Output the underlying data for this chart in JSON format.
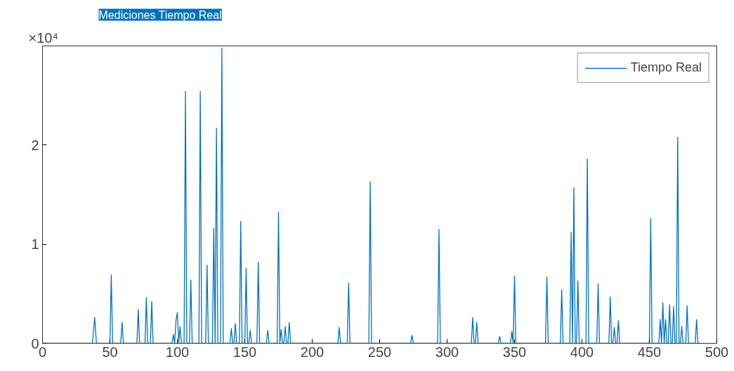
{
  "chart_data": {
    "type": "line",
    "title": "Mediciones Tiempo Real",
    "annotations": [
      "×10⁴"
    ],
    "x": [
      0,
      37,
      38.7,
      40,
      50,
      51,
      52,
      58,
      59,
      60,
      70,
      71,
      72,
      76,
      77,
      78,
      80,
      81,
      82,
      96,
      97,
      98,
      99,
      100,
      101,
      102,
      103,
      105,
      106,
      107,
      109,
      110,
      111,
      116,
      117,
      118,
      121,
      122,
      123,
      126,
      127,
      128,
      129,
      130,
      132,
      133,
      134,
      139,
      140,
      141,
      142,
      143,
      144,
      146,
      147,
      148,
      150,
      151,
      152,
      153,
      154,
      155,
      159,
      160,
      161,
      166,
      167,
      168,
      174,
      175,
      176,
      177,
      178,
      179,
      180,
      181,
      182,
      183,
      184,
      219,
      220,
      221,
      226,
      227,
      228,
      242,
      243,
      244,
      273,
      274,
      275,
      293,
      294,
      295,
      318,
      319,
      320,
      321,
      322,
      323,
      338,
      339,
      340,
      347,
      348,
      349,
      350,
      351,
      373,
      374,
      375,
      384,
      385,
      386,
      391,
      392,
      393,
      394,
      395,
      396,
      397,
      398,
      403,
      404,
      405,
      411,
      412,
      413,
      420,
      421,
      422,
      423,
      424,
      425,
      426,
      427,
      428,
      450,
      451,
      452,
      457,
      458,
      459,
      460,
      461,
      462,
      463,
      464,
      465,
      466,
      467,
      468,
      469,
      470,
      471,
      472,
      473,
      474,
      475,
      477,
      478,
      479,
      484,
      485,
      486,
      487
    ],
    "series": [
      {
        "name": "Tiempo Real",
        "color": "#0072bd",
        "values": [
          0,
          0,
          0.26,
          0,
          0,
          0.69,
          0,
          0,
          0.21,
          0,
          0,
          0.34,
          0,
          0,
          0.46,
          0,
          0,
          0.42,
          0,
          0,
          0.09,
          0,
          0.23,
          0.31,
          0,
          0.17,
          0,
          0,
          2.54,
          0,
          0,
          0.64,
          0,
          0,
          2.54,
          0,
          0,
          0.79,
          0,
          0,
          1.16,
          0,
          2.17,
          0,
          0,
          2.98,
          0,
          0,
          0.15,
          0,
          0,
          0.2,
          0,
          0,
          1.23,
          0,
          0,
          0.76,
          0,
          0,
          0.13,
          0,
          0,
          0.82,
          0,
          0,
          0.13,
          0,
          0,
          1.32,
          0,
          0.14,
          0,
          0,
          0.17,
          0,
          0,
          0.21,
          0,
          0,
          0.16,
          0,
          0,
          0.61,
          0,
          0,
          1.63,
          0,
          0,
          0.08,
          0,
          0,
          1.15,
          0,
          0,
          0.26,
          0,
          0,
          0.21,
          0,
          0,
          0.07,
          0,
          0,
          0.12,
          0,
          0.68,
          0,
          0,
          0.67,
          0,
          0,
          0.54,
          0,
          0,
          1.12,
          0,
          1.57,
          0,
          0,
          0.63,
          0,
          0,
          1.86,
          0,
          0,
          0.6,
          0,
          0,
          0.47,
          0,
          0,
          0.16,
          0,
          0,
          0.23,
          0,
          0,
          1.26,
          0,
          0,
          0.24,
          0,
          0.41,
          0,
          0.24,
          0,
          0,
          0.39,
          0,
          0,
          0.37,
          0,
          0,
          2.08,
          0,
          0,
          0.17,
          0,
          0,
          0.38,
          0,
          0,
          0.24,
          0,
          0
        ]
      }
    ],
    "xlim": [
      0,
      500
    ],
    "xticks": [
      0,
      50,
      100,
      150,
      200,
      250,
      300,
      350,
      400,
      450,
      500
    ],
    "ylim": [
      0,
      3
    ],
    "yticks": [
      0,
      1,
      2
    ],
    "grid": false,
    "legend": "top right",
    "marker": "none",
    "line_style": "solid"
  }
}
